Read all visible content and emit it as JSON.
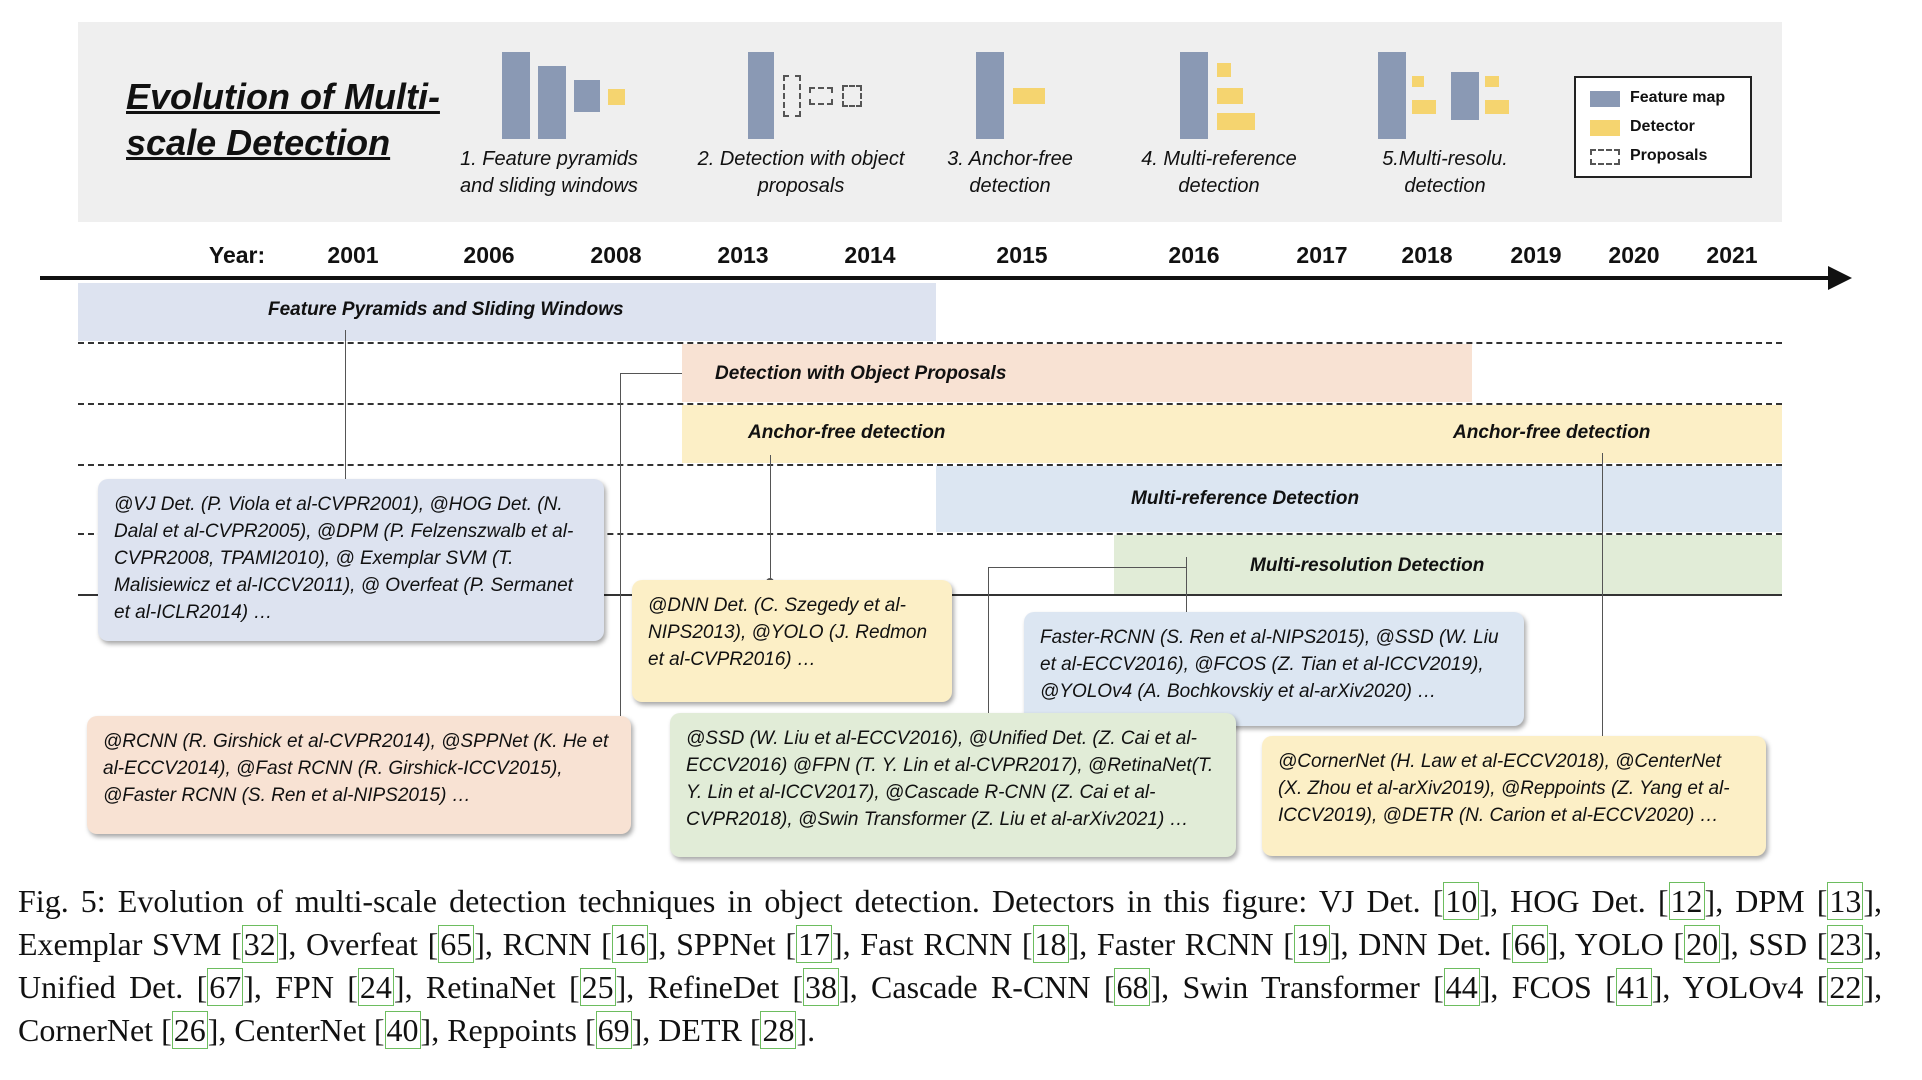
{
  "figure": {
    "title": "Evolution of Multi-scale Detection",
    "panels": [
      {
        "caption": "1. Feature pyramids and sliding windows"
      },
      {
        "caption": "2. Detection with object proposals"
      },
      {
        "caption": "3. Anchor-free detection"
      },
      {
        "caption": "4. Multi-reference detection"
      },
      {
        "caption": "5.Multi-resolu. detection"
      }
    ],
    "legend": [
      {
        "label": "Feature map",
        "color": "#8a99b4",
        "icon": "feature-map-swatch"
      },
      {
        "label": "Detector",
        "color": "#f5d46f",
        "icon": "detector-swatch"
      },
      {
        "label": "Proposals",
        "color": "#ffffff",
        "icon": "proposal-dashed-swatch"
      }
    ]
  },
  "timeline": {
    "year_label": "Year:",
    "years": [
      "2001",
      "2006",
      "2008",
      "2013",
      "2014",
      "2015",
      "2016",
      "2017",
      "2018",
      "2019",
      "2020",
      "2021"
    ]
  },
  "bands": [
    {
      "label": "Feature Pyramids and Sliding Windows",
      "color": "#dde3f0"
    },
    {
      "label": "Detection with Object Proposals",
      "color": "#f8e2d3"
    },
    {
      "label": "Anchor-free detection",
      "label2": "Anchor-free detection",
      "color": "#fcefc6"
    },
    {
      "label": "Multi-reference Detection",
      "color": "#dce6f2"
    },
    {
      "label": "Multi-resolution Detection",
      "color": "#e1ecd7"
    }
  ],
  "callouts": {
    "sliding": "@VJ Det. (P. Viola et al-CVPR2001), @HOG Det. (N. Dalal et al-CVPR2005), @DPM (P. Felzenszwalb et al-CVPR2008, TPAMI2010), @ Exemplar SVM (T. Malisiewicz et al-ICCV2011), @ Overfeat (P. Sermanet et al-ICLR2014) …",
    "proposals": "@RCNN (R. Girshick et al-CVPR2014), @SPPNet (K. He et al-ECCV2014), @Fast RCNN (R. Girshick-ICCV2015), @Faster RCNN (S. Ren et al-NIPS2015) …",
    "anchorfree1": "@DNN Det. (C. Szegedy et al-NIPS2013), @YOLO (J. Redmon et al-CVPR2016) …",
    "multiref": "Faster-RCNN (S. Ren et al-NIPS2015), @SSD (W. Liu et al-ECCV2016), @FCOS (Z. Tian et al-ICCV2019), @YOLOv4 (A. Bochkovskiy et al-arXiv2020) …",
    "multires": "@SSD (W. Liu et al-ECCV2016), @Unified Det. (Z. Cai et al-ECCV2016) @FPN (T. Y. Lin et al-CVPR2017), @RetinaNet(T. Y. Lin et al-ICCV2017), @Cascade R-CNN (Z. Cai et al-CVPR2018), @Swin Transformer (Z. Liu et al-arXiv2021) …",
    "anchorfree2": "@CornerNet (H. Law et al-ECCV2018), @CenterNet (X. Zhou et al-arXiv2019), @Reppoints (Z. Yang et al-ICCV2019), @DETR (N. Carion et al-ECCV2020) …"
  },
  "caption": {
    "label": "Fig. 5:",
    "text": "Evolution of multi-scale detection techniques in object detection. Detectors in this figure:",
    "items": [
      {
        "name": "VJ Det.",
        "ref": "10"
      },
      {
        "name": "HOG Det.",
        "ref": "12"
      },
      {
        "name": "DPM",
        "ref": "13"
      },
      {
        "name": "Exemplar SVM",
        "ref": "32"
      },
      {
        "name": "Overfeat",
        "ref": "65"
      },
      {
        "name": "RCNN",
        "ref": "16"
      },
      {
        "name": "SPPNet",
        "ref": "17"
      },
      {
        "name": "Fast RCNN",
        "ref": "18"
      },
      {
        "name": "Faster RCNN",
        "ref": "19"
      },
      {
        "name": "DNN Det.",
        "ref": "66"
      },
      {
        "name": "YOLO",
        "ref": "20"
      },
      {
        "name": "SSD",
        "ref": "23"
      },
      {
        "name": "Unified Det.",
        "ref": "67"
      },
      {
        "name": "FPN",
        "ref": "24"
      },
      {
        "name": "RetinaNet",
        "ref": "25"
      },
      {
        "name": "RefineDet",
        "ref": "38"
      },
      {
        "name": "Cascade R-CNN",
        "ref": "68"
      },
      {
        "name": "Swin Transformer",
        "ref": "44"
      },
      {
        "name": "FCOS",
        "ref": "41"
      },
      {
        "name": "YOLOv4",
        "ref": "22"
      },
      {
        "name": "CornerNet",
        "ref": "26"
      },
      {
        "name": "CenterNet",
        "ref": "40"
      },
      {
        "name": "Reppoints",
        "ref": "69"
      },
      {
        "name": "DETR",
        "ref": "28"
      }
    ]
  }
}
